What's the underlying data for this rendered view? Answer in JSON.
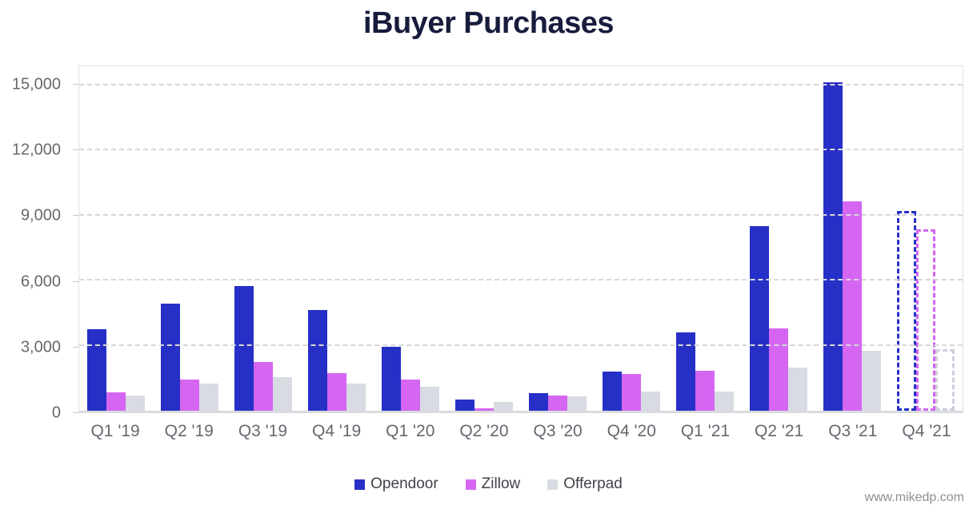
{
  "title": "iBuyer Purchases",
  "watermark": "www.mikedp.com",
  "colors": {
    "opendoor": "#2630C6",
    "zillow": "#D566F2",
    "offerpad": "#D8DBE2",
    "offerpad_outline": "#CBD0DA",
    "title_text": "#171C3D",
    "axis_text": "#66686D",
    "legend_text": "#3F4349",
    "gridline": "#D8D8D8",
    "watermark_text": "#8E8E8E"
  },
  "chart_data": {
    "type": "bar",
    "title": "iBuyer Purchases",
    "categories": [
      "Q1 '19",
      "Q2 '19",
      "Q3 '19",
      "Q4 '19",
      "Q1 '20",
      "Q2 '20",
      "Q3 '20",
      "Q4 '20",
      "Q1 '21",
      "Q2 '21",
      "Q3 '21",
      "Q4 '21"
    ],
    "series": [
      {
        "name": "Opendoor",
        "color": "#2630C6",
        "outline_color": "#2630C6",
        "values": [
          3750,
          4950,
          5750,
          4650,
          2950,
          500,
          800,
          1800,
          3600,
          8500,
          15150,
          9200
        ]
      },
      {
        "name": "Zillow",
        "color": "#D566F2",
        "outline_color": "#D566F2",
        "values": [
          830,
          1450,
          2250,
          1750,
          1450,
          100,
          700,
          1700,
          1850,
          3800,
          9650,
          8350
        ]
      },
      {
        "name": "Offerpad",
        "color": "#D8DBE2",
        "outline_color": "#CBD0DA",
        "values": [
          700,
          1250,
          1550,
          1250,
          1100,
          400,
          650,
          900,
          900,
          2000,
          2750,
          2850
        ]
      }
    ],
    "forecast_category": "Q4 '21",
    "forecast_style": "dashed-outline",
    "xlabel": "",
    "ylabel": "",
    "ylim": [
      0,
      15875
    ],
    "yticks": [
      {
        "label": "0",
        "value": 0
      },
      {
        "label": "3,000",
        "value": 3000
      },
      {
        "label": "6,000",
        "value": 6000
      },
      {
        "label": "9,000",
        "value": 9000
      },
      {
        "label": "12,000",
        "value": 12000
      },
      {
        "label": "15,000",
        "value": 15000
      }
    ],
    "grid": "horizontal-dashed",
    "legend_position": "bottom"
  }
}
